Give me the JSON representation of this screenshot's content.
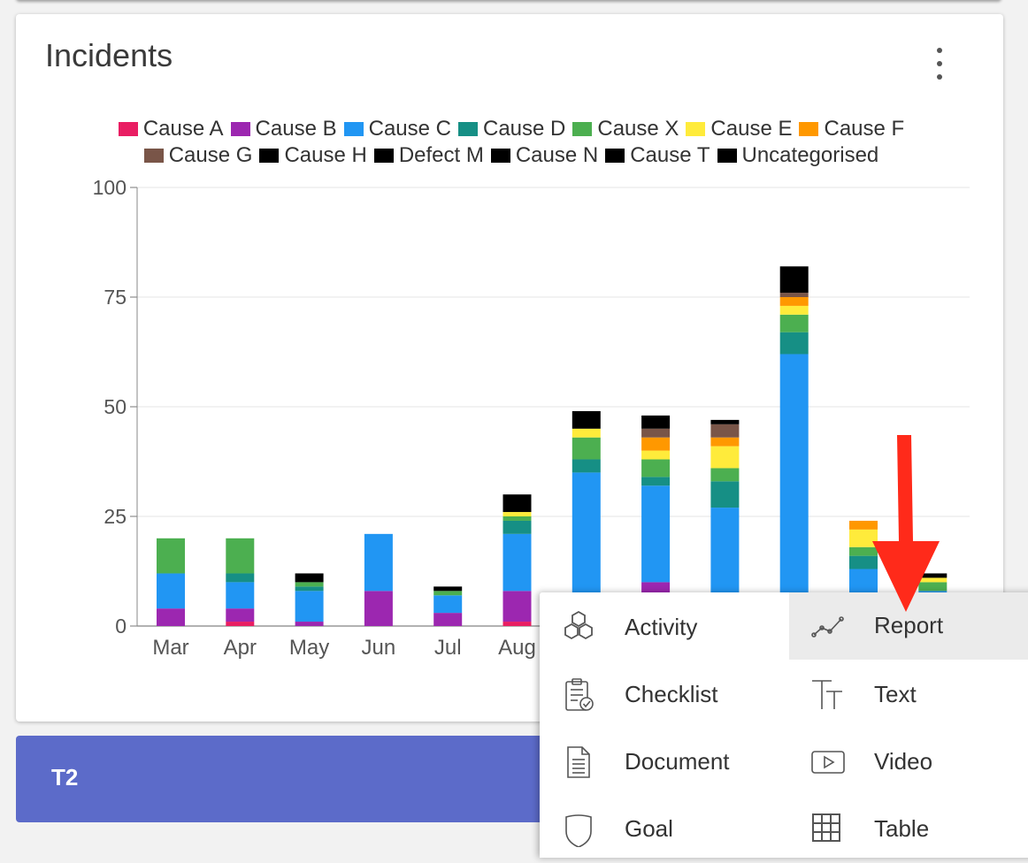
{
  "card": {
    "title": "Incidents",
    "menu_icon": "more-vert-icon"
  },
  "colors": {
    "Cause A": "#e91e63",
    "Cause B": "#9c27b0",
    "Cause C": "#2196f3",
    "Cause D": "#168f85",
    "Cause X": "#4caf50",
    "Cause E": "#ffeb3b",
    "Cause F": "#ff9800",
    "Cause G": "#795548",
    "Cause H": "#000000",
    "Defect M": "#000000",
    "Cause N": "#000000",
    "Cause T": "#000000",
    "Uncategorised": "#000000"
  },
  "chart_data": {
    "type": "bar",
    "stacked": true,
    "title": "",
    "xlabel": "",
    "ylabel": "",
    "ylim": [
      0,
      100
    ],
    "yticks": [
      "0",
      "25",
      "50",
      "75",
      "100"
    ],
    "categories": [
      "Mar",
      "Apr",
      "May",
      "Jun",
      "Jul",
      "Aug",
      "",
      "",
      "",
      "",
      "",
      ""
    ],
    "legend": [
      "Cause A",
      "Cause B",
      "Cause C",
      "Cause D",
      "Cause X",
      "Cause E",
      "Cause F",
      "Cause G",
      "Cause H",
      "Defect M",
      "Cause N",
      "Cause T",
      "Uncategorised"
    ],
    "series": [
      {
        "name": "Cause A",
        "values": [
          0,
          1,
          0,
          0,
          0,
          1,
          0,
          0,
          0,
          0,
          0,
          0
        ]
      },
      {
        "name": "Cause B",
        "values": [
          4,
          3,
          1,
          8,
          3,
          7,
          0,
          10,
          0,
          0,
          0,
          0
        ]
      },
      {
        "name": "Cause C",
        "values": [
          8,
          6,
          7,
          13,
          4,
          13,
          35,
          22,
          27,
          62,
          13,
          8
        ]
      },
      {
        "name": "Cause D",
        "values": [
          0,
          2,
          1,
          0,
          0,
          3,
          3,
          2,
          6,
          5,
          3,
          0
        ]
      },
      {
        "name": "Cause X",
        "values": [
          8,
          8,
          1,
          0,
          1,
          1,
          5,
          4,
          3,
          4,
          2,
          2
        ]
      },
      {
        "name": "Cause E",
        "values": [
          0,
          0,
          0,
          0,
          0,
          1,
          2,
          2,
          5,
          2,
          4,
          1
        ]
      },
      {
        "name": "Cause F",
        "values": [
          0,
          0,
          0,
          0,
          0,
          0,
          0,
          3,
          2,
          2,
          2,
          0
        ]
      },
      {
        "name": "Cause G",
        "values": [
          0,
          0,
          0,
          0,
          0,
          0,
          0,
          2,
          3,
          1,
          0,
          0
        ]
      },
      {
        "name": "Uncategorised",
        "values": [
          0,
          0,
          2,
          0,
          1,
          4,
          4,
          3,
          1,
          6,
          0,
          1
        ]
      }
    ]
  },
  "t2": {
    "label": "T2"
  },
  "menu": {
    "items": [
      {
        "label": "Activity",
        "icon": "hexagons-icon"
      },
      {
        "label": "Report",
        "icon": "line-chart-icon"
      },
      {
        "label": "Checklist",
        "icon": "checklist-icon"
      },
      {
        "label": "Text",
        "icon": "text-format-icon"
      },
      {
        "label": "Document",
        "icon": "document-icon"
      },
      {
        "label": "Video",
        "icon": "video-icon"
      },
      {
        "label": "Goal",
        "icon": "shield-icon"
      },
      {
        "label": "Table",
        "icon": "table-icon"
      }
    ],
    "selected": "Report"
  },
  "annotation": {
    "color": "#ff2a1a"
  }
}
